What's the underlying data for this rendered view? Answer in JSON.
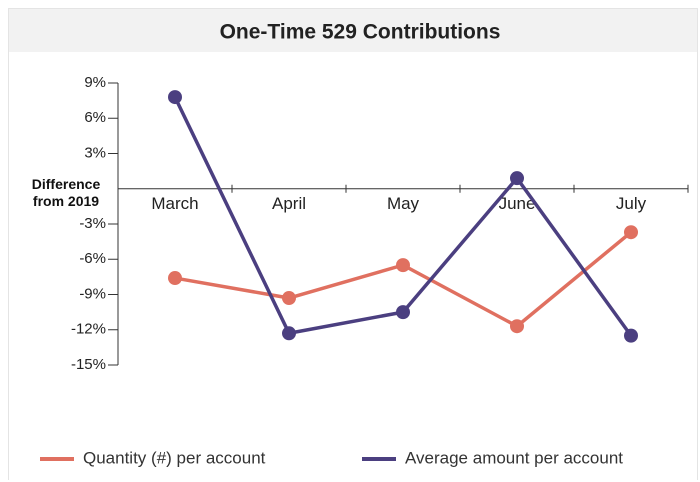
{
  "chart_data": {
    "type": "line",
    "title": "One-Time 529 Contributions",
    "y_label": "Difference from 2019",
    "categories": [
      "March",
      "April",
      "May",
      "June",
      "July"
    ],
    "series": [
      {
        "name": "Quantity (#) per account",
        "color": "#e07060",
        "values": [
          -7.6,
          -9.3,
          -6.5,
          -11.7,
          -3.7
        ]
      },
      {
        "name": "Average amount per account",
        "color": "#4b3f80",
        "values": [
          7.8,
          -12.3,
          -10.5,
          0.9,
          -12.5
        ]
      }
    ],
    "ylim": [
      -15,
      9
    ],
    "yticks": [
      {
        "value": 9,
        "label": "9%"
      },
      {
        "value": 6,
        "label": "6%"
      },
      {
        "value": 3,
        "label": "3%"
      },
      {
        "value": -3,
        "label": "-3%"
      },
      {
        "value": -6,
        "label": "-6%"
      },
      {
        "value": -9,
        "label": "-9%"
      },
      {
        "value": -12,
        "label": "-12%"
      },
      {
        "value": -15,
        "label": "-15%"
      }
    ],
    "legend": "bottom"
  }
}
